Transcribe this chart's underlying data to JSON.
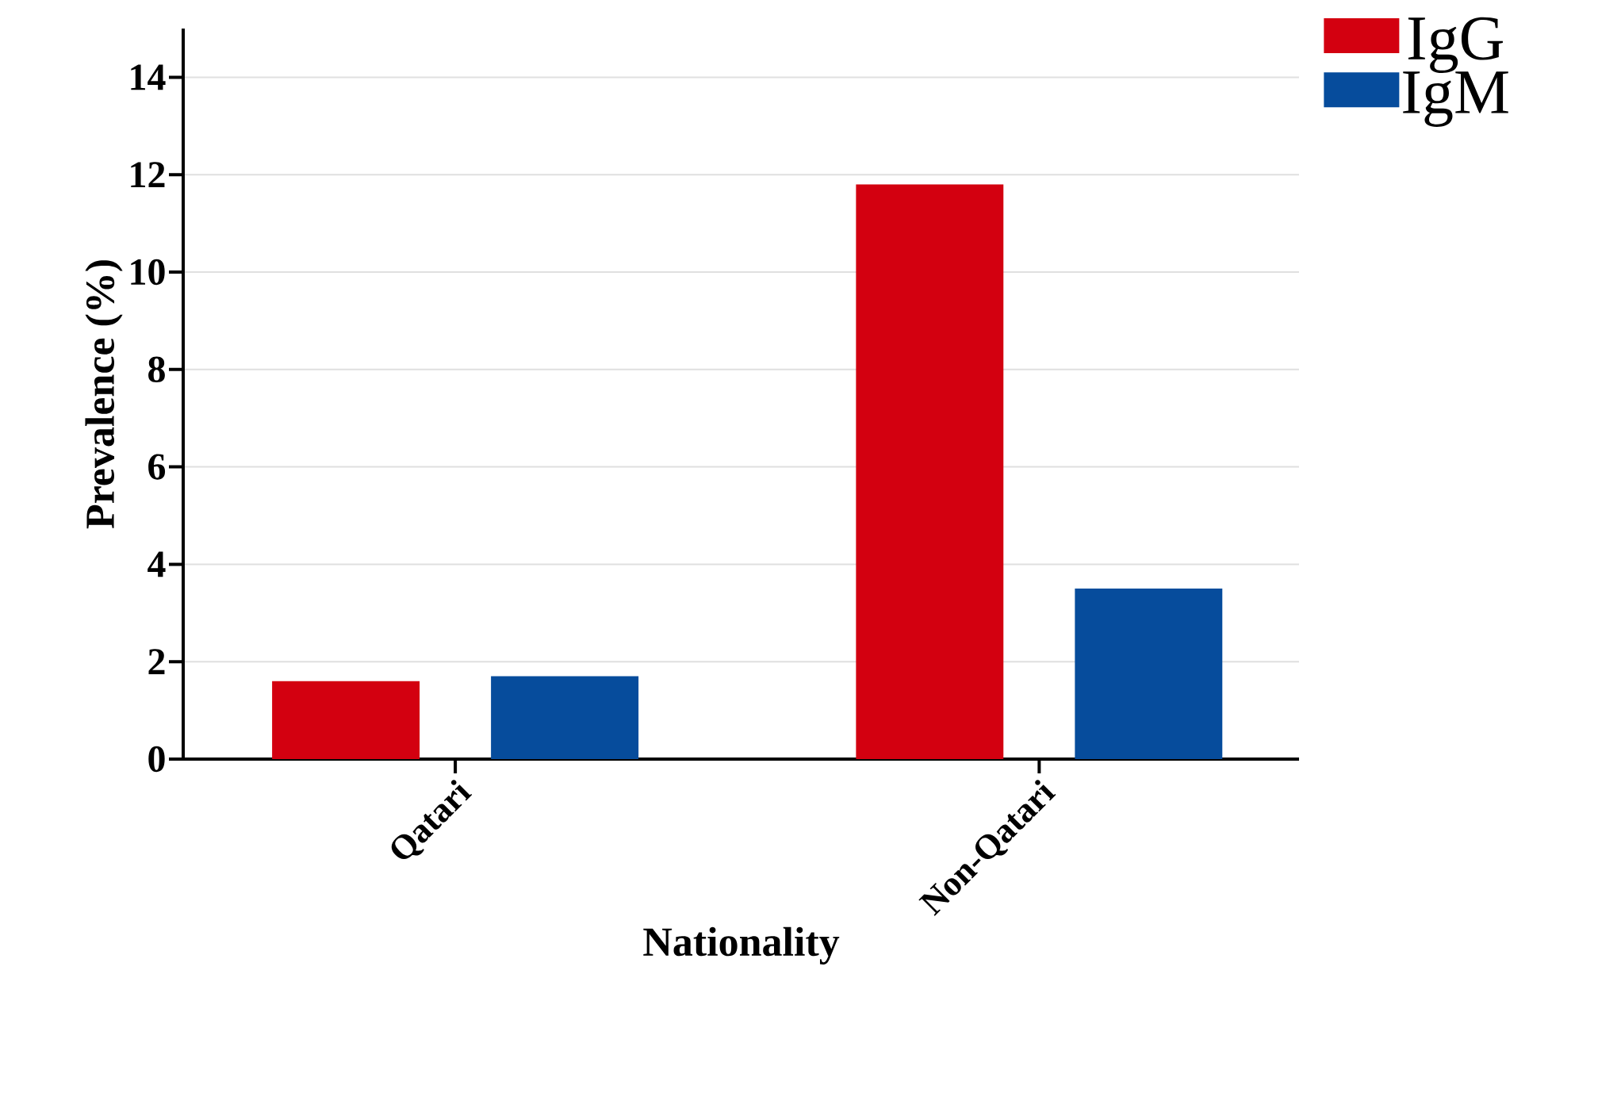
{
  "chart_data": {
    "type": "bar",
    "xlabel": "Nationality",
    "ylabel": "Prevalence (%)",
    "categories": [
      "Qatari",
      "Non-Qatari"
    ],
    "series": [
      {
        "name": "IgG",
        "color": "#d30010",
        "values": [
          1.6,
          11.8
        ]
      },
      {
        "name": "IgM",
        "color": "#064c9c",
        "values": [
          1.7,
          3.5
        ]
      }
    ],
    "ylim": [
      0,
      15
    ],
    "yticks": [
      0,
      2,
      4,
      6,
      8,
      10,
      12,
      14
    ],
    "grid": "y",
    "legend": "top right"
  }
}
